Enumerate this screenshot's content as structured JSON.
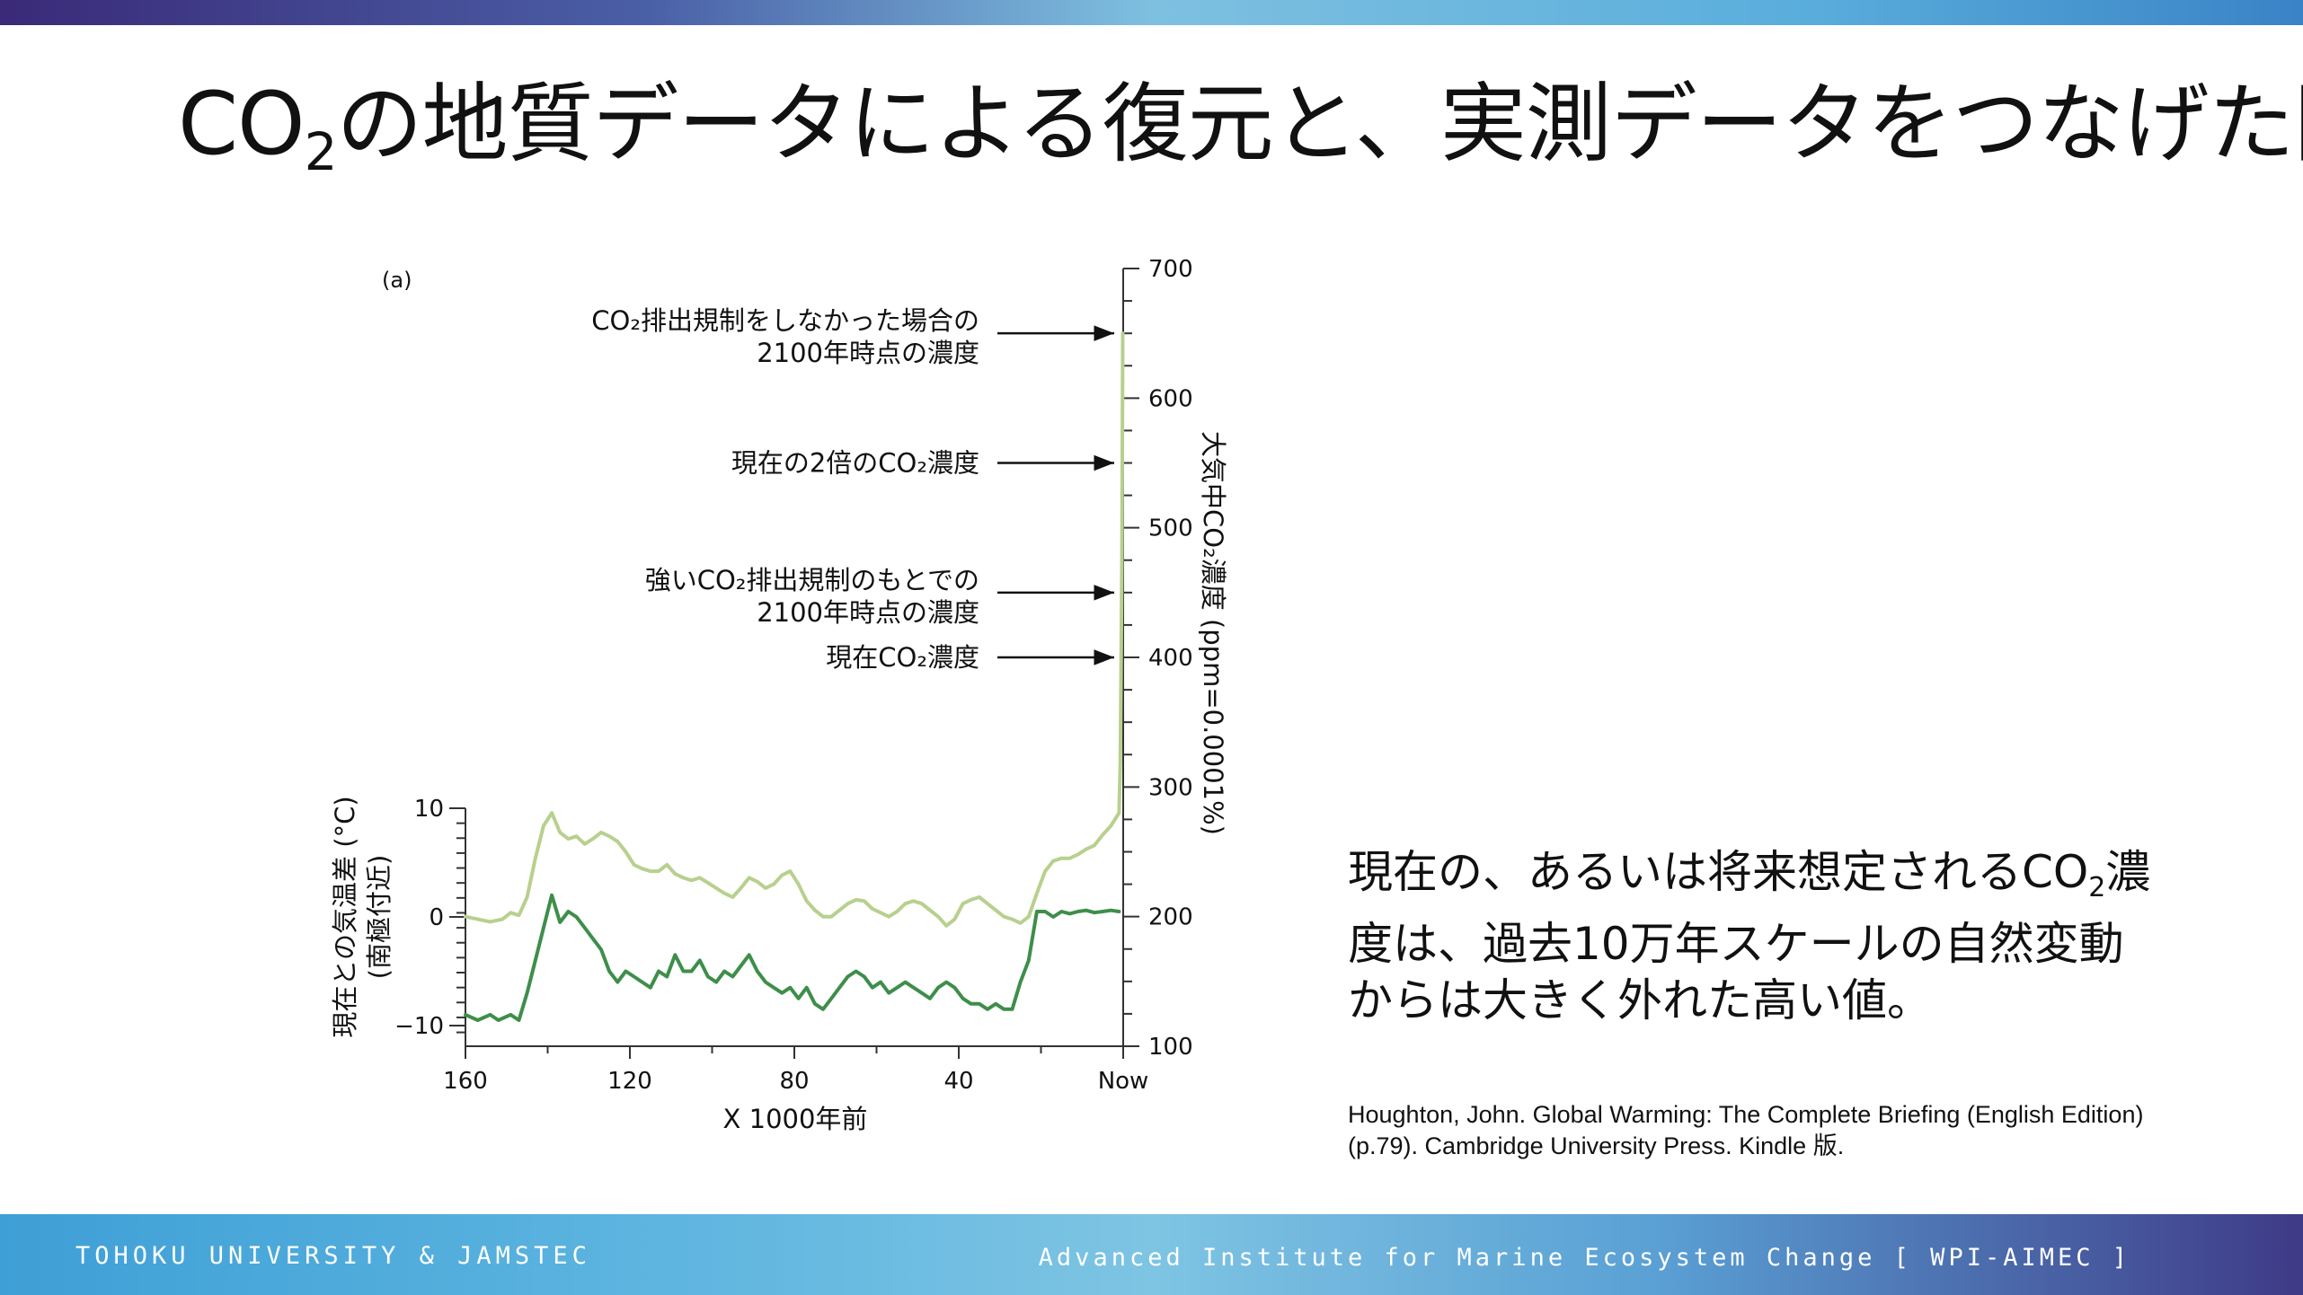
{
  "slide": {
    "title": {
      "before_sub": "CO",
      "sub": "2",
      "after_sub": "の地質データによる復元と、実測データをつなげた図"
    },
    "summary": {
      "before_sub": "現在の、あるいは将来想定されるCO",
      "sub": "2",
      "after_sub": "濃度は、過去10万年スケールの自然変動からは大きく外れた高い値。"
    },
    "citation": "Houghton, John. Global Warming: The Complete Briefing (English Edition) (p.79). Cambridge University Press. Kindle 版.",
    "footer_left": "TOHOKU UNIVERSITY & JAMSTEC",
    "footer_right": "Advanced Institute for Marine Ecosystem Change [ WPI-AIMEC ]",
    "colors": {
      "temperature_line": "#3e8e4a",
      "co2_line": "#b8d08e",
      "band_dark": "#3a2a78",
      "band_light": "#7ec0e0"
    }
  },
  "chart_data": {
    "type": "line",
    "panel_label": "(a)",
    "xlabel": "X 1000年前",
    "x_ticks": [
      {
        "value": 160,
        "label": "160"
      },
      {
        "value": 120,
        "label": "120"
      },
      {
        "value": 80,
        "label": "80"
      },
      {
        "value": 40,
        "label": "40"
      },
      {
        "value": 0,
        "label": "Now"
      }
    ],
    "xlim": [
      160,
      0
    ],
    "y_left": {
      "label_main": "現在との気温差 (°C)",
      "label_sub": "(南極付近)",
      "ticks": [
        "10",
        "0",
        "−10"
      ],
      "tick_values": [
        10,
        0,
        -10
      ],
      "ylim": [
        -12,
        10
      ]
    },
    "y_right": {
      "label": "大気中CO₂濃度 (ppm=0.0001%)",
      "ticks": [
        "700",
        "600",
        "500",
        "400",
        "300",
        "200",
        "100"
      ],
      "tick_values": [
        700,
        600,
        500,
        400,
        300,
        200,
        100
      ],
      "ylim": [
        100,
        700
      ]
    },
    "series": [
      {
        "axis": "left",
        "x": [
          160,
          157,
          154,
          152,
          149,
          147,
          145,
          143,
          141,
          139,
          137,
          135,
          133,
          131,
          129,
          127,
          125,
          123,
          121,
          119,
          117,
          115,
          113,
          111,
          109,
          107,
          105,
          103,
          101,
          99,
          97,
          95,
          93,
          91,
          89,
          87,
          85,
          83,
          81,
          79,
          77,
          75,
          73,
          71,
          69,
          67,
          65,
          63,
          61,
          59,
          57,
          55,
          53,
          51,
          49,
          47,
          45,
          43,
          41,
          39,
          37,
          35,
          33,
          31,
          29,
          27,
          25,
          23,
          21,
          19,
          17,
          15,
          13,
          11,
          9,
          7,
          5,
          3,
          1
        ],
        "y": [
          -9,
          -9.5,
          -9,
          -9.5,
          -9,
          -9.5,
          -7,
          -4,
          -1,
          2,
          -0.5,
          0.5,
          0,
          -1,
          -2,
          -3,
          -5,
          -6,
          -5,
          -5.5,
          -6,
          -6.5,
          -5,
          -5.5,
          -3.5,
          -5,
          -5,
          -4,
          -5.5,
          -6,
          -5,
          -5.5,
          -4.5,
          -3.5,
          -5,
          -6,
          -6.5,
          -7,
          -6.5,
          -7.5,
          -6.5,
          -8,
          -8.5,
          -7.5,
          -6.5,
          -5.5,
          -5,
          -5.5,
          -6.5,
          -6,
          -7,
          -6.5,
          -6,
          -6.5,
          -7,
          -7.5,
          -6.5,
          -6,
          -6.5,
          -7.5,
          -8,
          -8,
          -8.5,
          -8,
          -8.5,
          -8.5,
          -6,
          -4,
          0.5,
          0.5,
          0,
          0.5,
          0.3,
          0.5,
          0.6,
          0.4,
          0.5,
          0.6,
          0.5
        ]
      },
      {
        "axis": "right",
        "x": [
          160,
          157,
          154,
          151,
          149,
          147,
          145,
          143,
          141,
          139,
          137,
          135,
          133,
          131,
          129,
          127,
          125,
          123,
          121,
          119,
          117,
          115,
          113,
          111,
          109,
          107,
          105,
          103,
          101,
          99,
          97,
          95,
          93,
          91,
          89,
          87,
          85,
          83,
          81,
          79,
          77,
          75,
          73,
          71,
          69,
          67,
          65,
          63,
          61,
          59,
          57,
          55,
          53,
          51,
          49,
          47,
          45,
          43,
          41,
          39,
          37,
          35,
          33,
          31,
          29,
          27,
          25,
          23,
          21,
          19,
          17,
          15,
          13,
          11,
          9,
          7,
          5,
          3,
          1,
          0.7,
          0.5,
          0.3,
          0.1
        ],
        "y": [
          200,
          198,
          196,
          198,
          203,
          201,
          215,
          245,
          270,
          280,
          265,
          260,
          262,
          256,
          260,
          265,
          262,
          258,
          250,
          240,
          237,
          235,
          235,
          240,
          233,
          230,
          228,
          230,
          226,
          222,
          218,
          215,
          222,
          230,
          227,
          222,
          225,
          232,
          235,
          225,
          212,
          205,
          200,
          200,
          205,
          210,
          213,
          212,
          206,
          203,
          200,
          204,
          210,
          212,
          210,
          205,
          200,
          193,
          198,
          210,
          213,
          215,
          210,
          205,
          200,
          198,
          195,
          200,
          218,
          235,
          243,
          245,
          245,
          248,
          252,
          255,
          263,
          270,
          280,
          320,
          400,
          480,
          650
        ]
      }
    ],
    "annotations": [
      {
        "lines": [
          "CO₂排出規制をしなかった場合の",
          "2100年時点の濃度"
        ],
        "value": 650
      },
      {
        "lines": [
          "現在の2倍のCO₂濃度"
        ],
        "value": 550
      },
      {
        "lines": [
          "強いCO₂排出規制のもとでの",
          "2100年時点の濃度"
        ],
        "value": 450
      },
      {
        "lines": [
          "現在CO₂濃度"
        ],
        "value": 400
      }
    ]
  }
}
